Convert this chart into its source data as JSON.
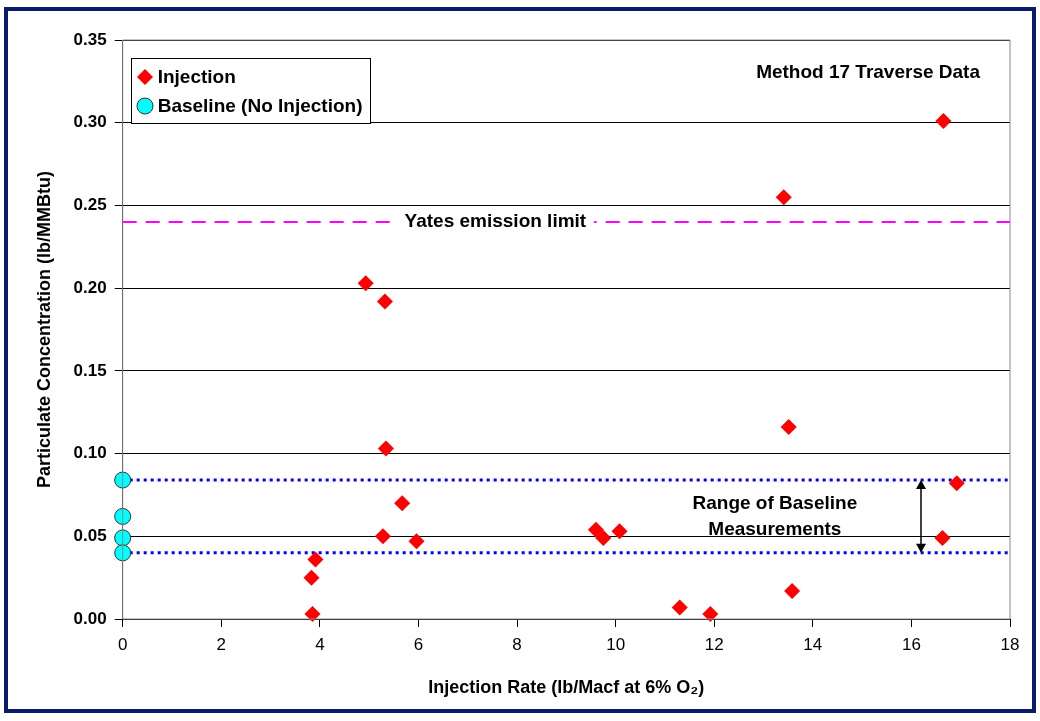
{
  "chart_data": {
    "type": "scatter",
    "title": "Method 17 Traverse Data",
    "xlabel": "Injection Rate (lb/Macf at 6% O₂)",
    "ylabel": "Particulate Concentration (lb/MMBtu)",
    "series": [
      {
        "name": "Injection",
        "color": "#ff0000",
        "marker": "diamond",
        "x": [
          16.65,
          13.41,
          13.51,
          16.92,
          16.63,
          13.58,
          11.3,
          11.92,
          9.6,
          9.75,
          10.08,
          4.93,
          5.32,
          5.34,
          5.67,
          5.28,
          5.96,
          3.91,
          3.83,
          3.85
        ],
        "values": [
          0.301,
          0.255,
          0.116,
          0.082,
          0.049,
          0.017,
          0.007,
          0.003,
          0.054,
          0.049,
          0.053,
          0.203,
          0.192,
          0.103,
          0.07,
          0.05,
          0.047,
          0.036,
          0.025,
          0.003
        ]
      },
      {
        "name": "Baseline (No Injection)",
        "color": "#00ffff",
        "marker": "circle",
        "x": [
          0,
          0,
          0,
          0
        ],
        "values": [
          0.084,
          0.062,
          0.049,
          0.04
        ]
      }
    ],
    "xlim": [
      0,
      18
    ],
    "xticks": [
      0,
      2,
      4,
      6,
      8,
      10,
      12,
      14,
      16,
      18
    ],
    "ylim": [
      0,
      0.35
    ],
    "yticks": [
      {
        "value": 0,
        "label": "0.00"
      },
      {
        "value": 0.05,
        "label": "0.05"
      },
      {
        "value": 0.1,
        "label": "0.10"
      },
      {
        "value": 0.15,
        "label": "0.15"
      },
      {
        "value": 0.2,
        "label": "0.20"
      },
      {
        "value": 0.25,
        "label": "0.25"
      },
      {
        "value": 0.3,
        "label": "0.30"
      },
      {
        "value": 0.35,
        "label": "0.35"
      }
    ],
    "grid": "y",
    "legend": "top left",
    "ref_lines": [
      {
        "axis": "y",
        "value": 0.24,
        "label": "Yates emission limit",
        "color": "#ff00ff",
        "line_style": "dashed"
      },
      {
        "axis": "y",
        "value": 0.084,
        "color": "#0000ff",
        "line_style": "dotted"
      },
      {
        "axis": "y",
        "value": 0.04,
        "color": "#0000ff",
        "line_style": "dotted"
      }
    ],
    "annotations": [
      "Range of Baseline Measurements"
    ]
  }
}
